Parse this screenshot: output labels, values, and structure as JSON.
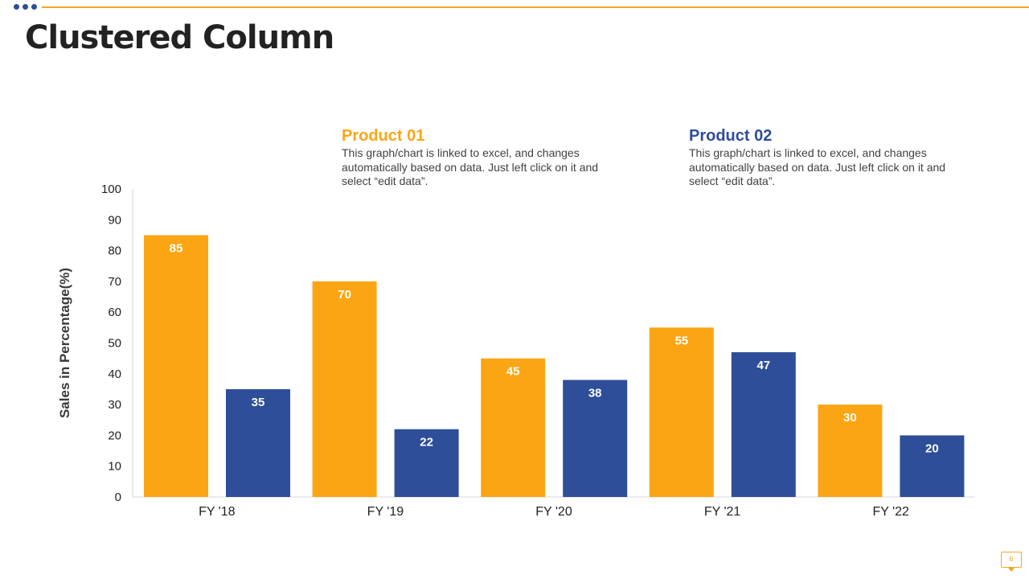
{
  "slide": {
    "title": "Clustered Column",
    "page_number": "6"
  },
  "legend": [
    {
      "title": "Product 01",
      "description": "This graph/chart is linked to excel, and changes automatically based on data. Just left click on it and select “edit data”.",
      "color": "#fba514"
    },
    {
      "title": "Product 02",
      "description": "This graph/chart is linked to excel, and changes automatically based on data. Just left click on it and select “edit data”.",
      "color": "#2e4e9a"
    }
  ],
  "chart_data": {
    "type": "bar",
    "title": "",
    "xlabel": "",
    "ylabel": "Sales in Percentage(%)",
    "categories": [
      "FY '18",
      "FY '19",
      "FY '20",
      "FY '21",
      "FY '22"
    ],
    "series": [
      {
        "name": "Product 01",
        "values": [
          85,
          70,
          45,
          55,
          30
        ],
        "color": "#fba514"
      },
      {
        "name": "Product 02",
        "values": [
          35,
          22,
          38,
          47,
          20
        ],
        "color": "#2e4e9a"
      }
    ],
    "ylim": [
      0,
      100
    ],
    "yticks": [
      0,
      10,
      20,
      30,
      40,
      50,
      60,
      70,
      80,
      90,
      100
    ],
    "grid": false,
    "data_labels": true
  }
}
